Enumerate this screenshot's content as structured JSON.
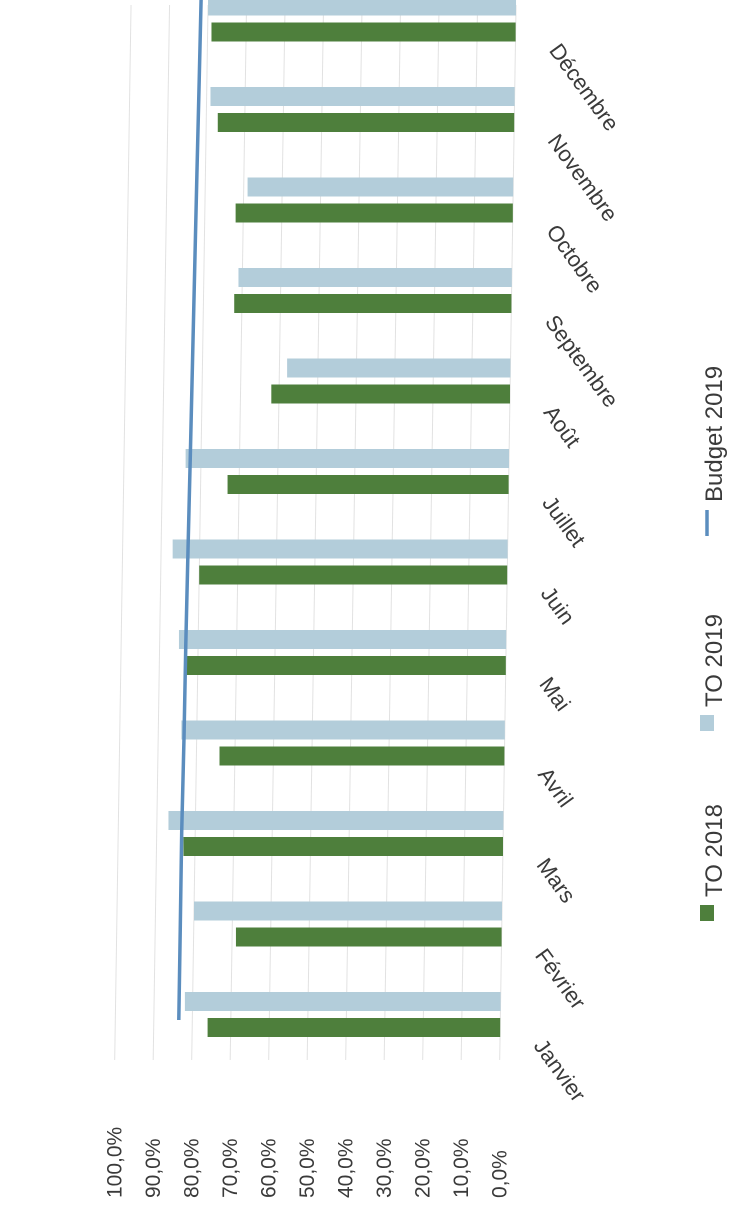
{
  "chart_data": {
    "type": "bar",
    "orientation": "rotated-90-clockwise",
    "categories": [
      "Janvier",
      "Février",
      "Mars",
      "Avril",
      "Mai",
      "Juin",
      "Juillet",
      "Août",
      "Septembre",
      "Octobre",
      "Novembre",
      "Décembre"
    ],
    "series": [
      {
        "name": "TO 2018",
        "type": "bar",
        "color": "#4e7f3c",
        "values": [
          76,
          69,
          83,
          74,
          83,
          80,
          73,
          62,
          72,
          72,
          77,
          79
        ]
      },
      {
        "name": "TO 2019",
        "type": "bar",
        "color": "#b3cdda",
        "values": [
          82,
          80,
          87,
          84,
          85,
          87,
          84,
          58,
          71,
          69,
          79,
          80
        ]
      },
      {
        "name": "Budget 2019",
        "type": "line",
        "color": "#5b8dbe",
        "values": [
          83.5,
          83.5,
          83.5,
          83.3,
          83.2,
          83.0,
          82.8,
          82.6,
          82.4,
          82.2,
          82.0,
          81.8
        ]
      }
    ],
    "y_ticks": [
      "0,0%",
      "10,0%",
      "20,0%",
      "30,0%",
      "40,0%",
      "50,0%",
      "60,0%",
      "70,0%",
      "80,0%",
      "90,0%",
      "100,0%"
    ],
    "ylim": [
      0,
      100
    ],
    "grid": true,
    "legend_position": "right"
  }
}
